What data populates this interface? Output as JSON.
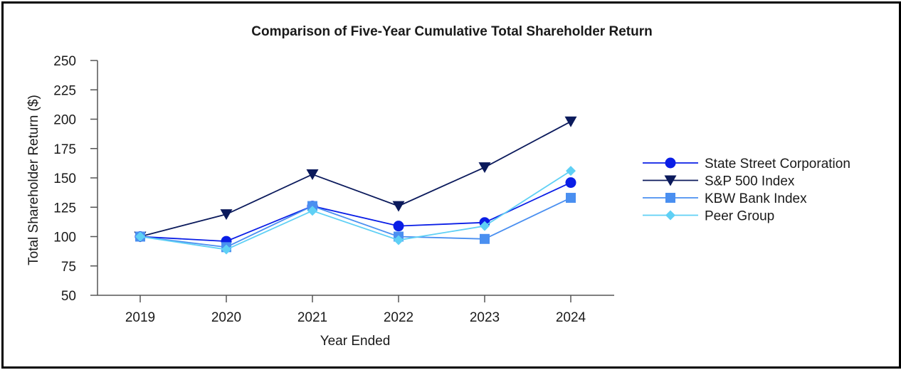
{
  "chart_data": {
    "type": "line",
    "title": "Comparison of Five-Year Cumulative Total Shareholder Return",
    "xlabel": "Year Ended",
    "ylabel": "Total Shareholder Return ($)",
    "ylim": [
      50,
      250
    ],
    "yticks": [
      50,
      75,
      100,
      125,
      150,
      175,
      200,
      225,
      250
    ],
    "categories": [
      "2019",
      "2020",
      "2021",
      "2022",
      "2023",
      "2024"
    ],
    "legend_position": "right",
    "series": [
      {
        "name": "State Street Corporation",
        "color": "#0a1ee6",
        "marker": "circle",
        "values": [
          100,
          96,
          126,
          109,
          112,
          146
        ]
      },
      {
        "name": "S&P 500 Index",
        "color": "#0b1a5c",
        "marker": "triangle-down",
        "values": [
          100,
          119,
          153,
          126,
          159,
          198
        ]
      },
      {
        "name": "KBW Bank Index",
        "color": "#4a8ff0",
        "marker": "square",
        "values": [
          100,
          91,
          126,
          100,
          98,
          133
        ]
      },
      {
        "name": "Peer Group",
        "color": "#5fd0f5",
        "marker": "diamond",
        "values": [
          100,
          89,
          122,
          97,
          109,
          156
        ]
      }
    ]
  }
}
